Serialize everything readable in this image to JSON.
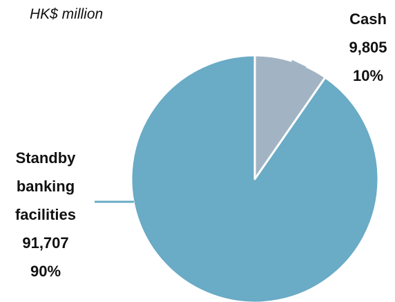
{
  "chart_data": {
    "type": "pie",
    "unit_label": "HK$ million",
    "slices": [
      {
        "label_lines": [
          "Cash"
        ],
        "value": 9805,
        "value_label": "9,805",
        "percent_label": "10%",
        "color": "#a2b4c4"
      },
      {
        "label_lines": [
          "Standby",
          "banking",
          "facilities"
        ],
        "value": 91707,
        "value_label": "91,707",
        "percent_label": "90%",
        "color": "#6aabc6"
      }
    ],
    "start_angle": "12 o'clock",
    "direction": "clockwise",
    "slice_border_color": "#ffffff",
    "leader_line_color": "#6aabc6"
  }
}
